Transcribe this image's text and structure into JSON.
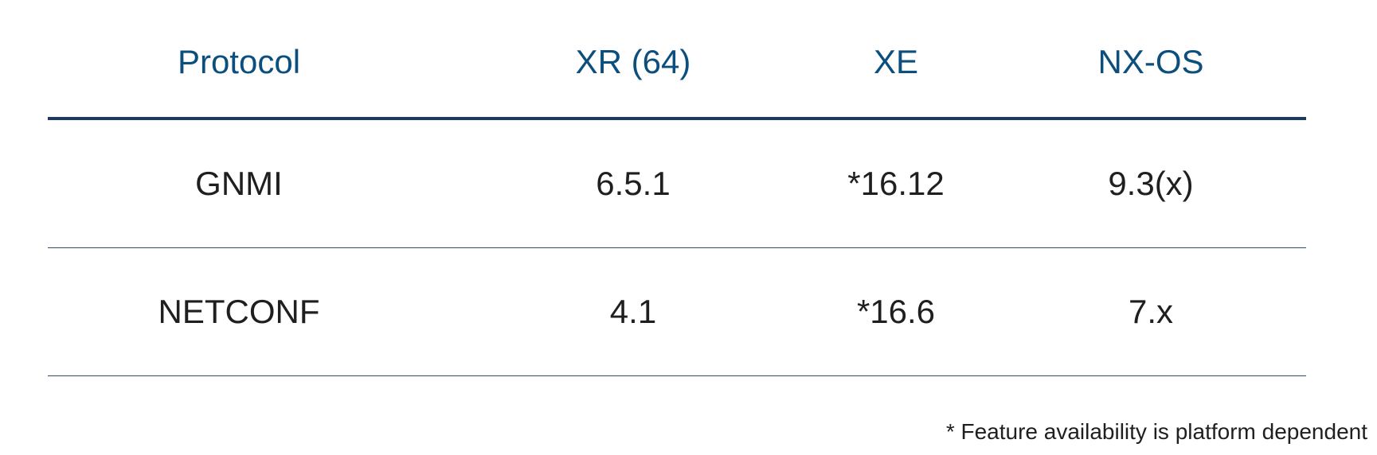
{
  "table": {
    "headers": [
      "Protocol",
      "XR (64)",
      "XE",
      "NX-OS"
    ],
    "rows": [
      [
        "GNMI",
        "6.5.1",
        "*16.12",
        "9.3(x)"
      ],
      [
        "NETCONF",
        "4.1",
        "*16.6",
        "7.x"
      ]
    ]
  },
  "footnote": "* Feature availability is platform dependent",
  "colors": {
    "header_text": "#0d4f7c",
    "rule": "#1d3a63",
    "body_text": "#1f1f1f"
  }
}
